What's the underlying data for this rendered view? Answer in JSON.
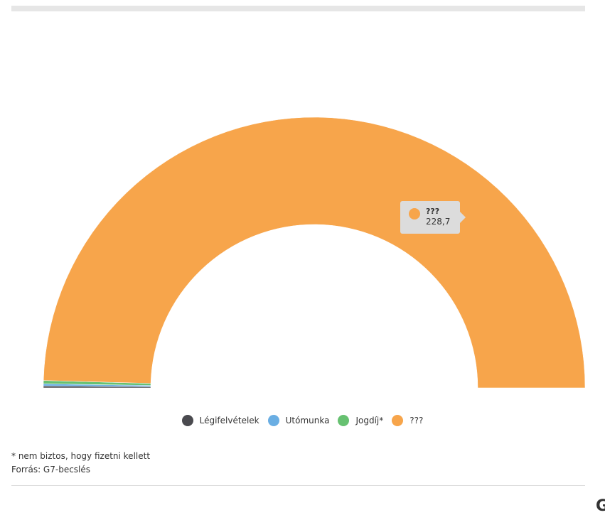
{
  "chart_data": {
    "type": "pie",
    "variant": "semi-donut",
    "series": [
      {
        "name": "Légifelvételek",
        "value": 0.5,
        "color": "#4a4a4f"
      },
      {
        "name": "Utómunka",
        "value": 0.6,
        "color": "#6aaee3"
      },
      {
        "name": "Jogdíj*",
        "value": 0.9,
        "color": "#67c171"
      },
      {
        "name": "???",
        "value": 228.7,
        "color": "#f7a54b"
      }
    ],
    "tooltip": {
      "name": "???",
      "value": "228,7",
      "color": "#f7a54b"
    },
    "legend_position": "bottom-center"
  },
  "notes": {
    "footnote": "* nem biztos, hogy fizetni kellett",
    "source": "Forrás: G7-becslés"
  },
  "corner_glyph": "G"
}
